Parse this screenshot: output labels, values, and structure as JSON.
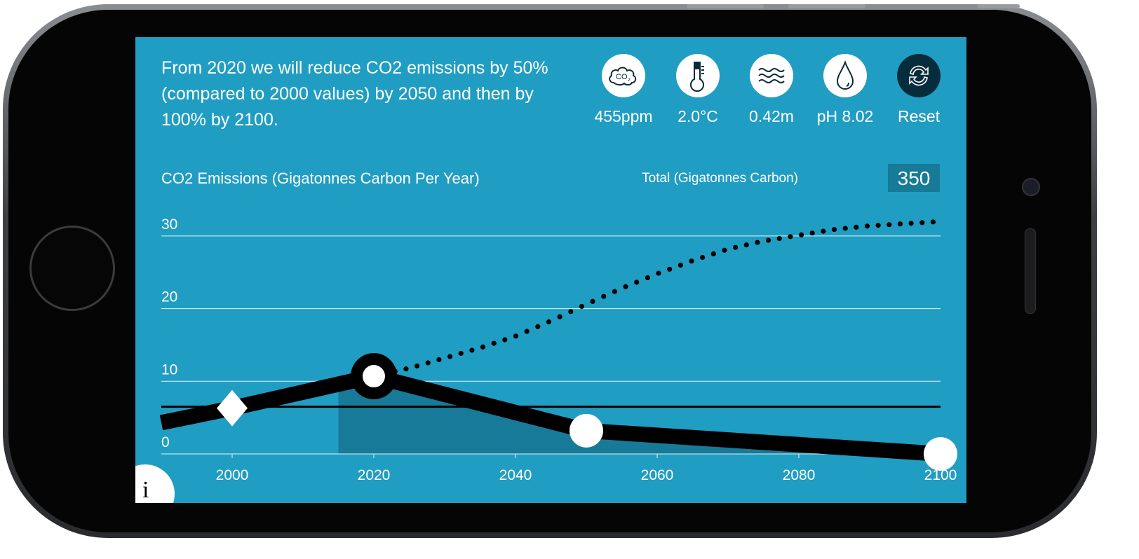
{
  "intro_text": "From 2020 we will reduce CO2 emissions by 50% (compared to 2000 values) by 2050 and then by 100% by 2100.",
  "stats": [
    {
      "icon": "co2-cloud-icon",
      "label": "455ppm"
    },
    {
      "icon": "thermometer-icon",
      "label": "2.0°C"
    },
    {
      "icon": "waves-icon",
      "label": "0.42m"
    },
    {
      "icon": "water-drop-icon",
      "label": "pH 8.02"
    },
    {
      "icon": "reset-icon",
      "label": "Reset"
    }
  ],
  "total_label": "Total (Gigatonnes Carbon)",
  "total_value": "350",
  "info_label": "i",
  "colors": {
    "background": "#209dc2",
    "shaded_area": "#177a98",
    "reset_button": "#062d3c",
    "line": "#000000"
  },
  "chart_data": {
    "type": "line",
    "title": "CO2 Emissions (Gigatonnes Carbon Per Year)",
    "xlim": [
      1990,
      2100
    ],
    "ylim": [
      0,
      32
    ],
    "x_ticks": [
      2000,
      2020,
      2040,
      2060,
      2080,
      2100
    ],
    "y_ticks": [
      0,
      10,
      20,
      30
    ],
    "grid": true,
    "series": [
      {
        "style": "solid",
        "x": [
          1990,
          2000,
          2020,
          2050,
          2100
        ],
        "y": [
          4.3,
          6.3,
          10.7,
          3.2,
          0
        ]
      },
      {
        "style": "dotted",
        "x": [
          2020,
          2025,
          2030,
          2035,
          2040,
          2045,
          2050,
          2055,
          2060,
          2065,
          2070,
          2075,
          2080,
          2085,
          2090,
          2095,
          2100
        ],
        "y": [
          10.7,
          11.8,
          13.2,
          14.6,
          16.2,
          18.3,
          20.6,
          22.8,
          24.8,
          26.6,
          28.2,
          29.3,
          30.1,
          30.9,
          31.4,
          31.7,
          32
        ]
      }
    ],
    "reference_line": 6.5,
    "shaded_from_year": 2015,
    "markers": [
      {
        "x": 2000,
        "shape": "diamond"
      },
      {
        "x": 2020,
        "shape": "ring"
      },
      {
        "x": 2050,
        "shape": "circle"
      },
      {
        "x": 2100,
        "shape": "circle"
      }
    ]
  }
}
